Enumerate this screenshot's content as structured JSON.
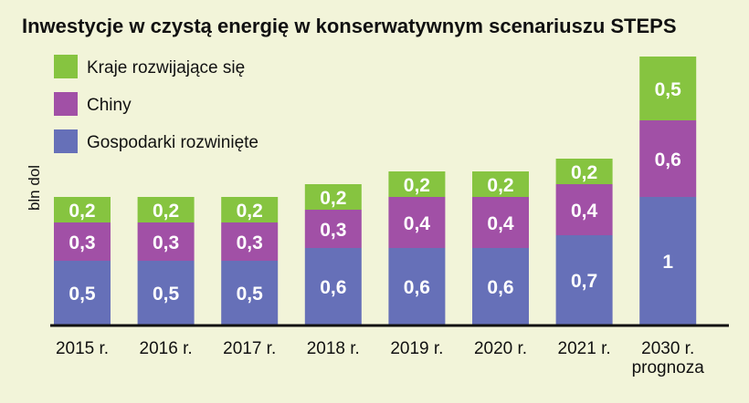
{
  "chart_data": {
    "type": "bar",
    "stacked": true,
    "title": "Inwestycje w czystą energię w konserwatywnym scenariuszu STEPS",
    "ylabel": "bln dol",
    "xlabel": "",
    "categories": [
      "2015 r.",
      "2016 r.",
      "2017 r.",
      "2018 r.",
      "2019 r.",
      "2020 r.",
      "2021 r.",
      "2030 r.\nprognoza"
    ],
    "series": [
      {
        "name": "Gospodarki rozwinięte",
        "color": "#6670b8",
        "values": [
          0.5,
          0.5,
          0.5,
          0.6,
          0.6,
          0.6,
          0.7,
          1
        ],
        "labels": [
          "0,5",
          "0,5",
          "0,5",
          "0,6",
          "0,6",
          "0,6",
          "0,7",
          "1"
        ]
      },
      {
        "name": "Chiny",
        "color": "#a150a6",
        "values": [
          0.3,
          0.3,
          0.3,
          0.3,
          0.4,
          0.4,
          0.4,
          0.6
        ],
        "labels": [
          "0,3",
          "0,3",
          "0,3",
          "0,3",
          "0,4",
          "0,4",
          "0,4",
          "0,6"
        ]
      },
      {
        "name": "Kraje rozwijające się",
        "color": "#86c440",
        "values": [
          0.2,
          0.2,
          0.2,
          0.2,
          0.2,
          0.2,
          0.2,
          0.5
        ],
        "labels": [
          "0,2",
          "0,2",
          "0,2",
          "0,2",
          "0,2",
          "0,2",
          "0,2",
          "0,5"
        ]
      }
    ],
    "legend_order": [
      "Kraje rozwijające się",
      "Chiny",
      "Gospodarki rozwinięte"
    ],
    "legend_position": "top-left",
    "ylim": [
      0,
      2.1
    ],
    "grid": false
  }
}
